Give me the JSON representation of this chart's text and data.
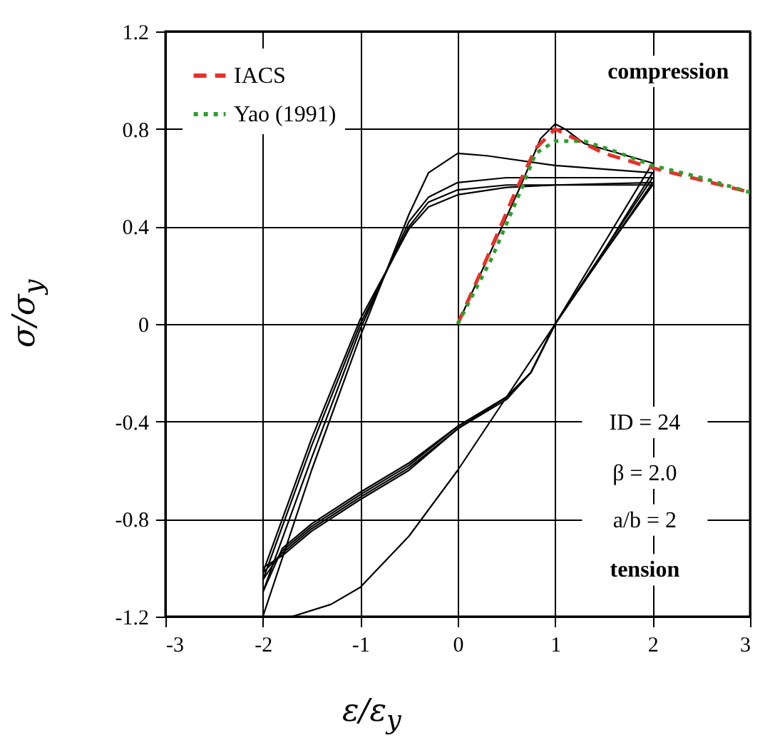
{
  "chart_data": {
    "type": "line",
    "xlabel": "ε/ε$_{y}$",
    "ylabel": "σ/σ$_{y}$",
    "xlim": [
      -3,
      3
    ],
    "ylim": [
      -1.2,
      1.2
    ],
    "xticks": [
      -3,
      -2,
      -1,
      0,
      1,
      2,
      3
    ],
    "yticks": [
      -1.2,
      -0.8,
      -0.4,
      0,
      0.4,
      0.8,
      1.2
    ],
    "grid": true,
    "legend": "top left",
    "annotations": [
      "compression",
      "ID = 24",
      "β = 2.0",
      "a/b = 2",
      "tension"
    ],
    "series": [
      {
        "color": "#000000",
        "x": [
          0,
          0.65,
          0.85,
          1,
          1.1,
          1.3,
          2,
          1.5,
          1,
          0.5,
          0,
          -0.5,
          -1,
          -1.3,
          -1.7,
          -2
        ],
        "values": [
          0,
          0.57,
          0.76,
          0.82,
          0.8,
          0.74,
          0.66,
          0.33,
          0,
          -0.3,
          -0.6,
          -0.87,
          -1.08,
          -1.15,
          -1.2,
          -1.2
        ]
      },
      {
        "color": "#000000",
        "x": [
          -2,
          -1.5,
          -1,
          -0.5,
          -0.3,
          0,
          0.3,
          1,
          2,
          1.5,
          1,
          0.75,
          0.5,
          0,
          -0.5,
          -1,
          -1.5,
          -1.8,
          -2
        ],
        "values": [
          -1.2,
          -0.6,
          -0.05,
          0.45,
          0.62,
          0.7,
          0.69,
          0.65,
          0.62,
          0.3,
          0,
          -0.2,
          -0.3,
          -0.42,
          -0.57,
          -0.69,
          -0.82,
          -0.92,
          -1.1
        ]
      },
      {
        "color": "#000000",
        "x": [
          -2,
          -1.5,
          -1,
          -0.5,
          -0.3,
          0,
          0.5,
          1,
          2,
          1.5,
          1,
          0.75,
          0.5,
          0,
          -0.5,
          -1,
          -1.5,
          -1.8,
          -2
        ],
        "values": [
          -1.1,
          -0.55,
          -0.02,
          0.42,
          0.52,
          0.58,
          0.6,
          0.6,
          0.6,
          0.3,
          0,
          -0.2,
          -0.3,
          -0.42,
          -0.58,
          -0.7,
          -0.83,
          -0.93,
          -1.05
        ]
      },
      {
        "color": "#000000",
        "x": [
          -2,
          -1.5,
          -1,
          -0.5,
          -0.3,
          0,
          0.5,
          1,
          2,
          1.5,
          1,
          0.75,
          0.5,
          0,
          -0.5,
          -1,
          -1.5,
          -1.8,
          -2
        ],
        "values": [
          -1.05,
          -0.5,
          0,
          0.4,
          0.5,
          0.55,
          0.57,
          0.57,
          0.58,
          0.29,
          0,
          -0.2,
          -0.3,
          -0.43,
          -0.59,
          -0.71,
          -0.84,
          -0.94,
          -1.02
        ]
      },
      {
        "color": "#000000",
        "x": [
          -2,
          -1.5,
          -1,
          -0.5,
          -0.3,
          0,
          0.5,
          1,
          2,
          1.5,
          1,
          0.75,
          0.5,
          0,
          -0.5,
          -1,
          -1.5,
          -1.8,
          -2
        ],
        "values": [
          -1.02,
          -0.47,
          0.02,
          0.39,
          0.48,
          0.53,
          0.56,
          0.57,
          0.57,
          0.29,
          0,
          -0.2,
          -0.31,
          -0.43,
          -0.6,
          -0.72,
          -0.85,
          -0.95,
          -1.0
        ]
      },
      {
        "name": "IACS",
        "color": "#e8302a",
        "line_style": "dashed",
        "x": [
          0,
          0.3,
          0.6,
          0.8,
          1,
          1.2,
          1.5,
          2,
          2.5,
          3
        ],
        "values": [
          0,
          0.27,
          0.55,
          0.72,
          0.8,
          0.76,
          0.7,
          0.64,
          0.59,
          0.54
        ]
      },
      {
        "name": "Yao (1991)",
        "color": "#2ca02c",
        "line_style": "dotted",
        "x": [
          0,
          0.35,
          0.65,
          0.8,
          1,
          1.3,
          1.6,
          2,
          2.5,
          3
        ],
        "values": [
          0,
          0.27,
          0.55,
          0.7,
          0.75,
          0.75,
          0.71,
          0.65,
          0.6,
          0.54
        ]
      }
    ]
  }
}
